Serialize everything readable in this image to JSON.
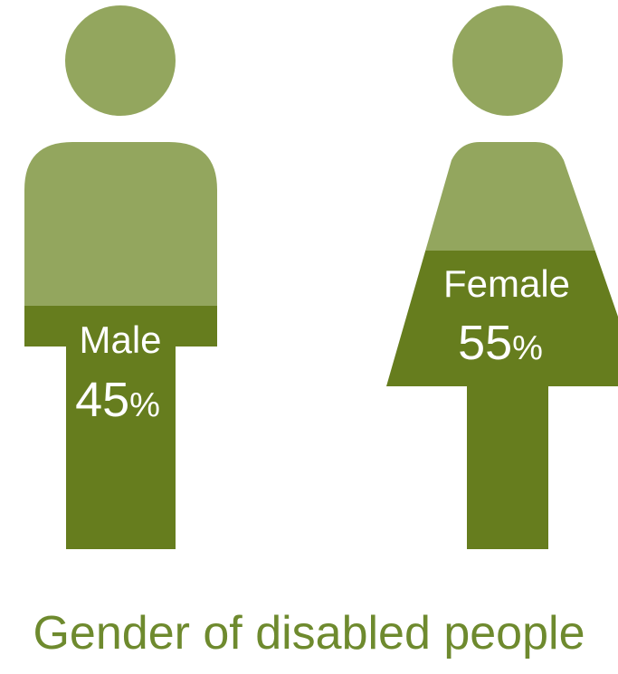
{
  "chart_data": {
    "type": "pictogram",
    "title": "Gender of disabled people",
    "unit": "%",
    "categories": [
      "Male",
      "Female"
    ],
    "values": [
      45,
      55
    ],
    "series": [
      {
        "name": "Male",
        "value": 45
      },
      {
        "name": "Female",
        "value": 55
      }
    ]
  },
  "colors": {
    "light": "#93a65e",
    "dark": "#667d1e",
    "title": "#6e8a2e",
    "label": "#ffffff"
  }
}
